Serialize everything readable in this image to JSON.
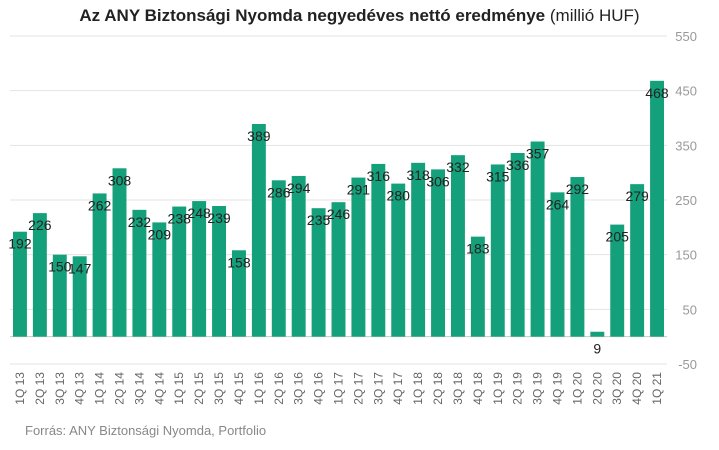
{
  "title_main": "Az ANY Biztonsági Nyomda negyedéves nettó eredménye",
  "title_unit": "(millió HUF)",
  "source": "Forrás: ANY Biztonsági Nyomda, Portfolio",
  "colors": {
    "bar": "#13a07a",
    "grid": "#e3e3e3",
    "tick": "#999999",
    "label": "#222222"
  },
  "chart_data": {
    "type": "bar",
    "title": "Az ANY Biztonsági Nyomda negyedéves nettó eredménye (millió HUF)",
    "categories": [
      "1Q 13",
      "2Q 13",
      "3Q 13",
      "4Q 13",
      "1Q 14",
      "2Q 14",
      "3Q 14",
      "4Q 14",
      "1Q 15",
      "2Q 15",
      "3Q 15",
      "4Q 15",
      "1Q 16",
      "2Q 16",
      "3Q 16",
      "4Q 16",
      "1Q 17",
      "2Q 17",
      "3Q 17",
      "4Q 17",
      "1Q 18",
      "2Q 18",
      "3Q 18",
      "4Q 18",
      "1Q 19",
      "2Q 19",
      "3Q 19",
      "4Q 19",
      "1Q 20",
      "2Q 20",
      "3Q 20",
      "4Q 20",
      "1Q 21"
    ],
    "values": [
      192,
      226,
      150,
      147,
      262,
      308,
      232,
      209,
      238,
      248,
      239,
      158,
      389,
      286,
      294,
      235,
      246,
      291,
      316,
      280,
      318,
      306,
      332,
      183,
      315,
      336,
      357,
      264,
      292,
      9,
      205,
      279,
      468
    ],
    "y_ticks": [
      -50,
      50,
      150,
      250,
      350,
      450,
      550
    ],
    "ylim": [
      -50,
      550
    ],
    "y_axis_side": "right",
    "grid": true,
    "xlabel": "",
    "ylabel": ""
  }
}
